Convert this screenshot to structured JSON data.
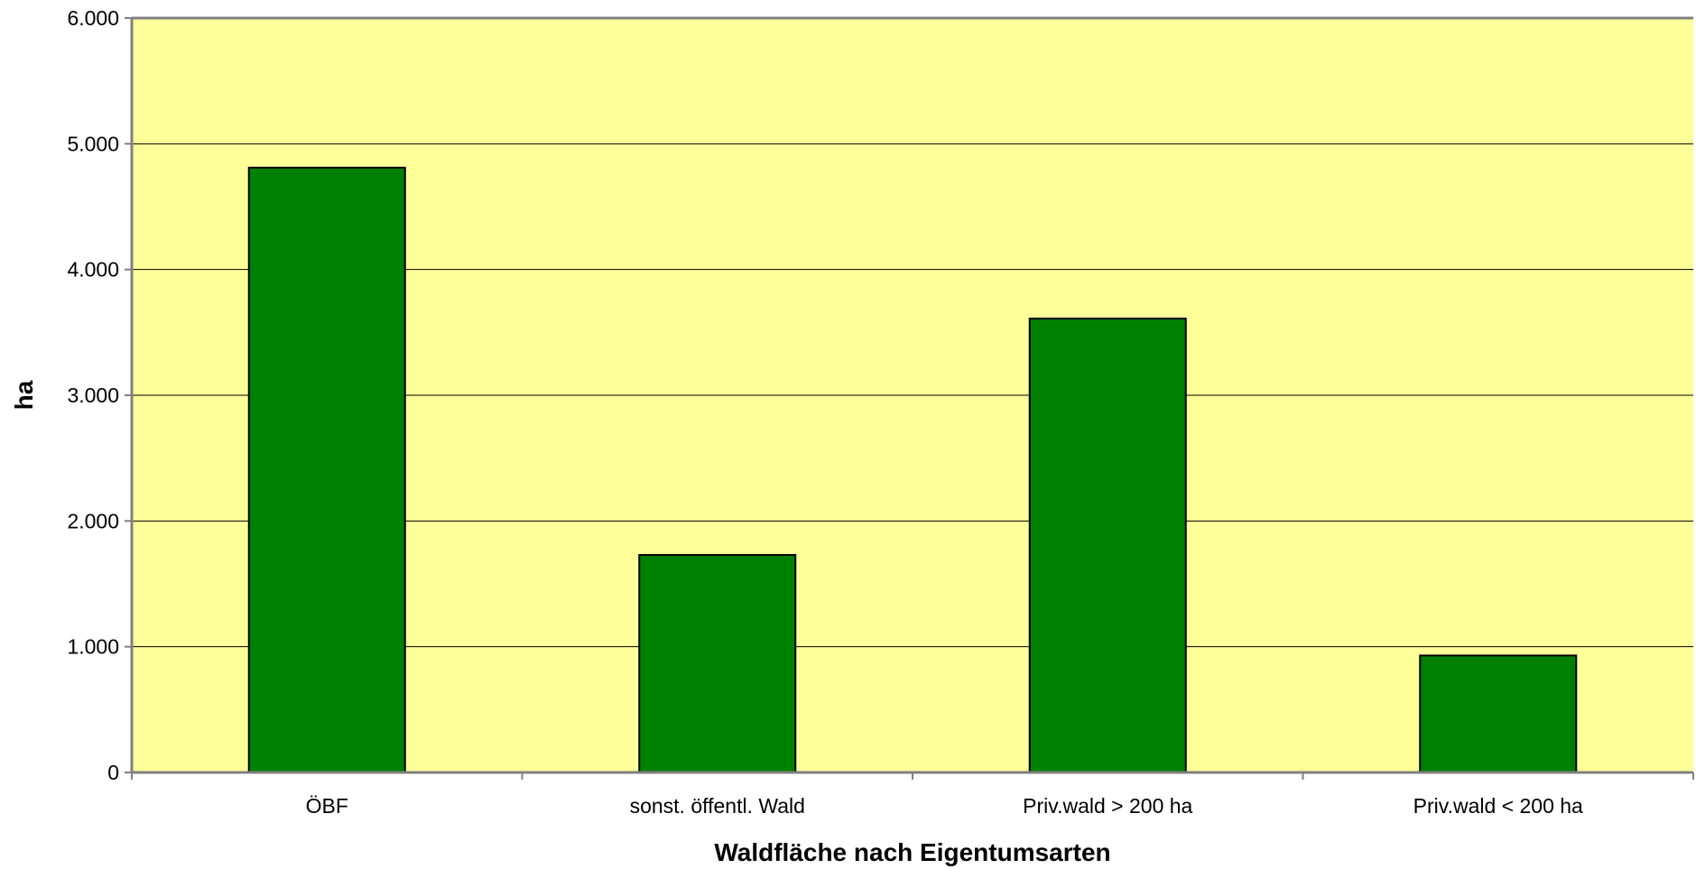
{
  "chart_data": {
    "type": "bar",
    "title": "",
    "xlabel": "Waldfläche nach Eigentumsarten",
    "ylabel": "ha",
    "categories": [
      "ÖBF",
      "sonst. öffentl. Wald",
      "Priv.wald > 200 ha",
      "Priv.wald < 200 ha"
    ],
    "values": [
      4810,
      1730,
      3610,
      930
    ],
    "ylim": [
      0,
      6000
    ],
    "yticks": [
      0,
      1000,
      2000,
      3000,
      4000,
      5000,
      6000
    ],
    "ytick_labels": [
      "0",
      "1.000",
      "2.000",
      "3.000",
      "4.000",
      "5.000",
      "6.000"
    ],
    "grid": true,
    "legend": "none",
    "colors": {
      "plot_background": "#FFFF99",
      "bar_fill": "#008000",
      "bar_stroke": "#000000",
      "gridline": "#000000",
      "axis": "#808080"
    }
  }
}
